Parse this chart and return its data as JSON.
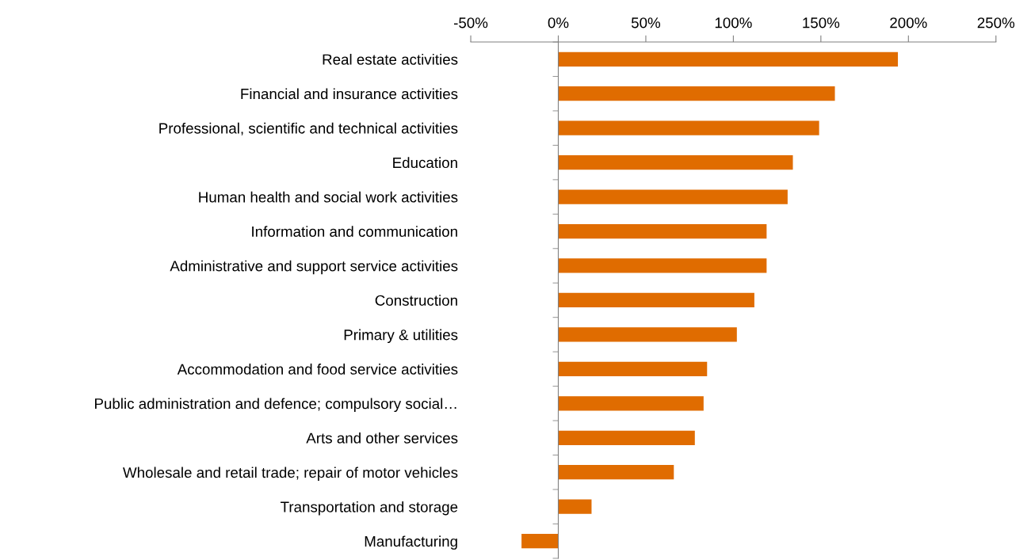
{
  "chart_data": {
    "type": "bar",
    "orientation": "horizontal",
    "categories": [
      "Real estate activities",
      "Financial and insurance activities",
      "Professional, scientific and technical activities",
      "Education",
      "Human health and social work activities",
      "Information and communication",
      "Administrative and support service activities",
      "Construction",
      "Primary & utilities",
      "Accommodation and food service activities",
      "Public administration and defence; compulsory social…",
      "Arts and other services",
      "Wholesale and retail trade; repair of motor vehicles",
      "Transportation and storage",
      "Manufacturing"
    ],
    "values": [
      194,
      158,
      149,
      134,
      131,
      119,
      119,
      112,
      102,
      85,
      83,
      78,
      66,
      19,
      -21
    ],
    "color": "#e06c00",
    "xlim": [
      -50,
      250
    ],
    "xticks": [
      {
        "value": -50,
        "label": "-50%"
      },
      {
        "value": 0,
        "label": "0%"
      },
      {
        "value": 50,
        "label": "50%"
      },
      {
        "value": 100,
        "label": "100%"
      },
      {
        "value": 150,
        "label": "150%"
      },
      {
        "value": 200,
        "label": "200%"
      },
      {
        "value": 250,
        "label": "250%"
      }
    ]
  }
}
